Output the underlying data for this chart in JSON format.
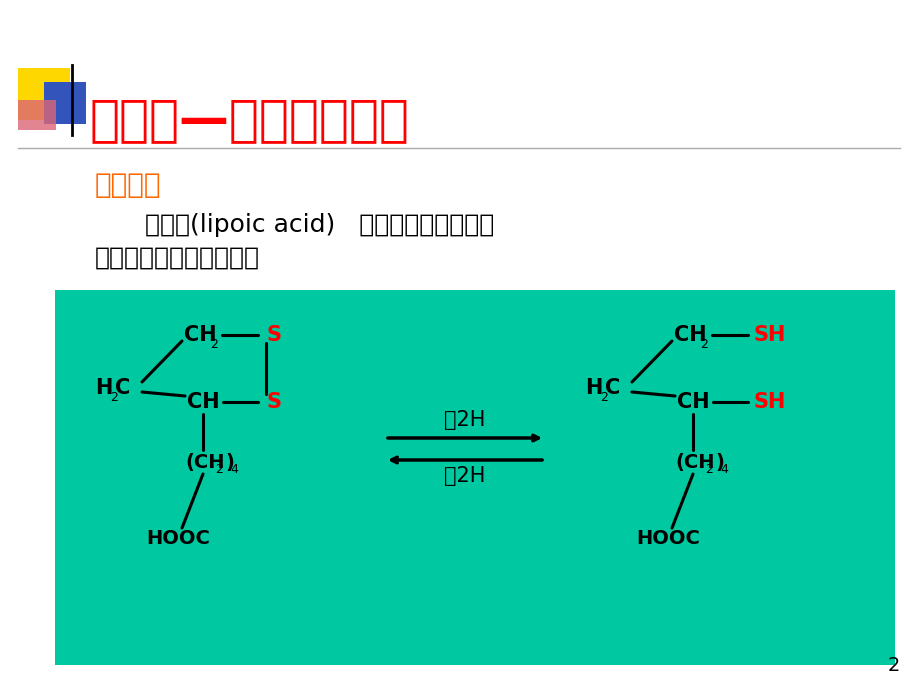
{
  "bg_color": "#ffffff",
  "teal_bg": "#00C8A0",
  "title_text": "硫辛酸—强效抗氧化剂",
  "title_color": "#FF0000",
  "title_fontsize": 36,
  "subtitle_color": "#FF6600",
  "subtitle_text": "生化作用",
  "subtitle_fontsize": 20,
  "body_text1": "硫辛酸(lipoic acid)   是硫辛酸乙酰转移酶",
  "body_text2": "的辅酶，起转酰基作用。",
  "body_fontsize": 18,
  "body_color": "#000000",
  "black": "#000000",
  "red": "#FF0000",
  "page_num": "2"
}
